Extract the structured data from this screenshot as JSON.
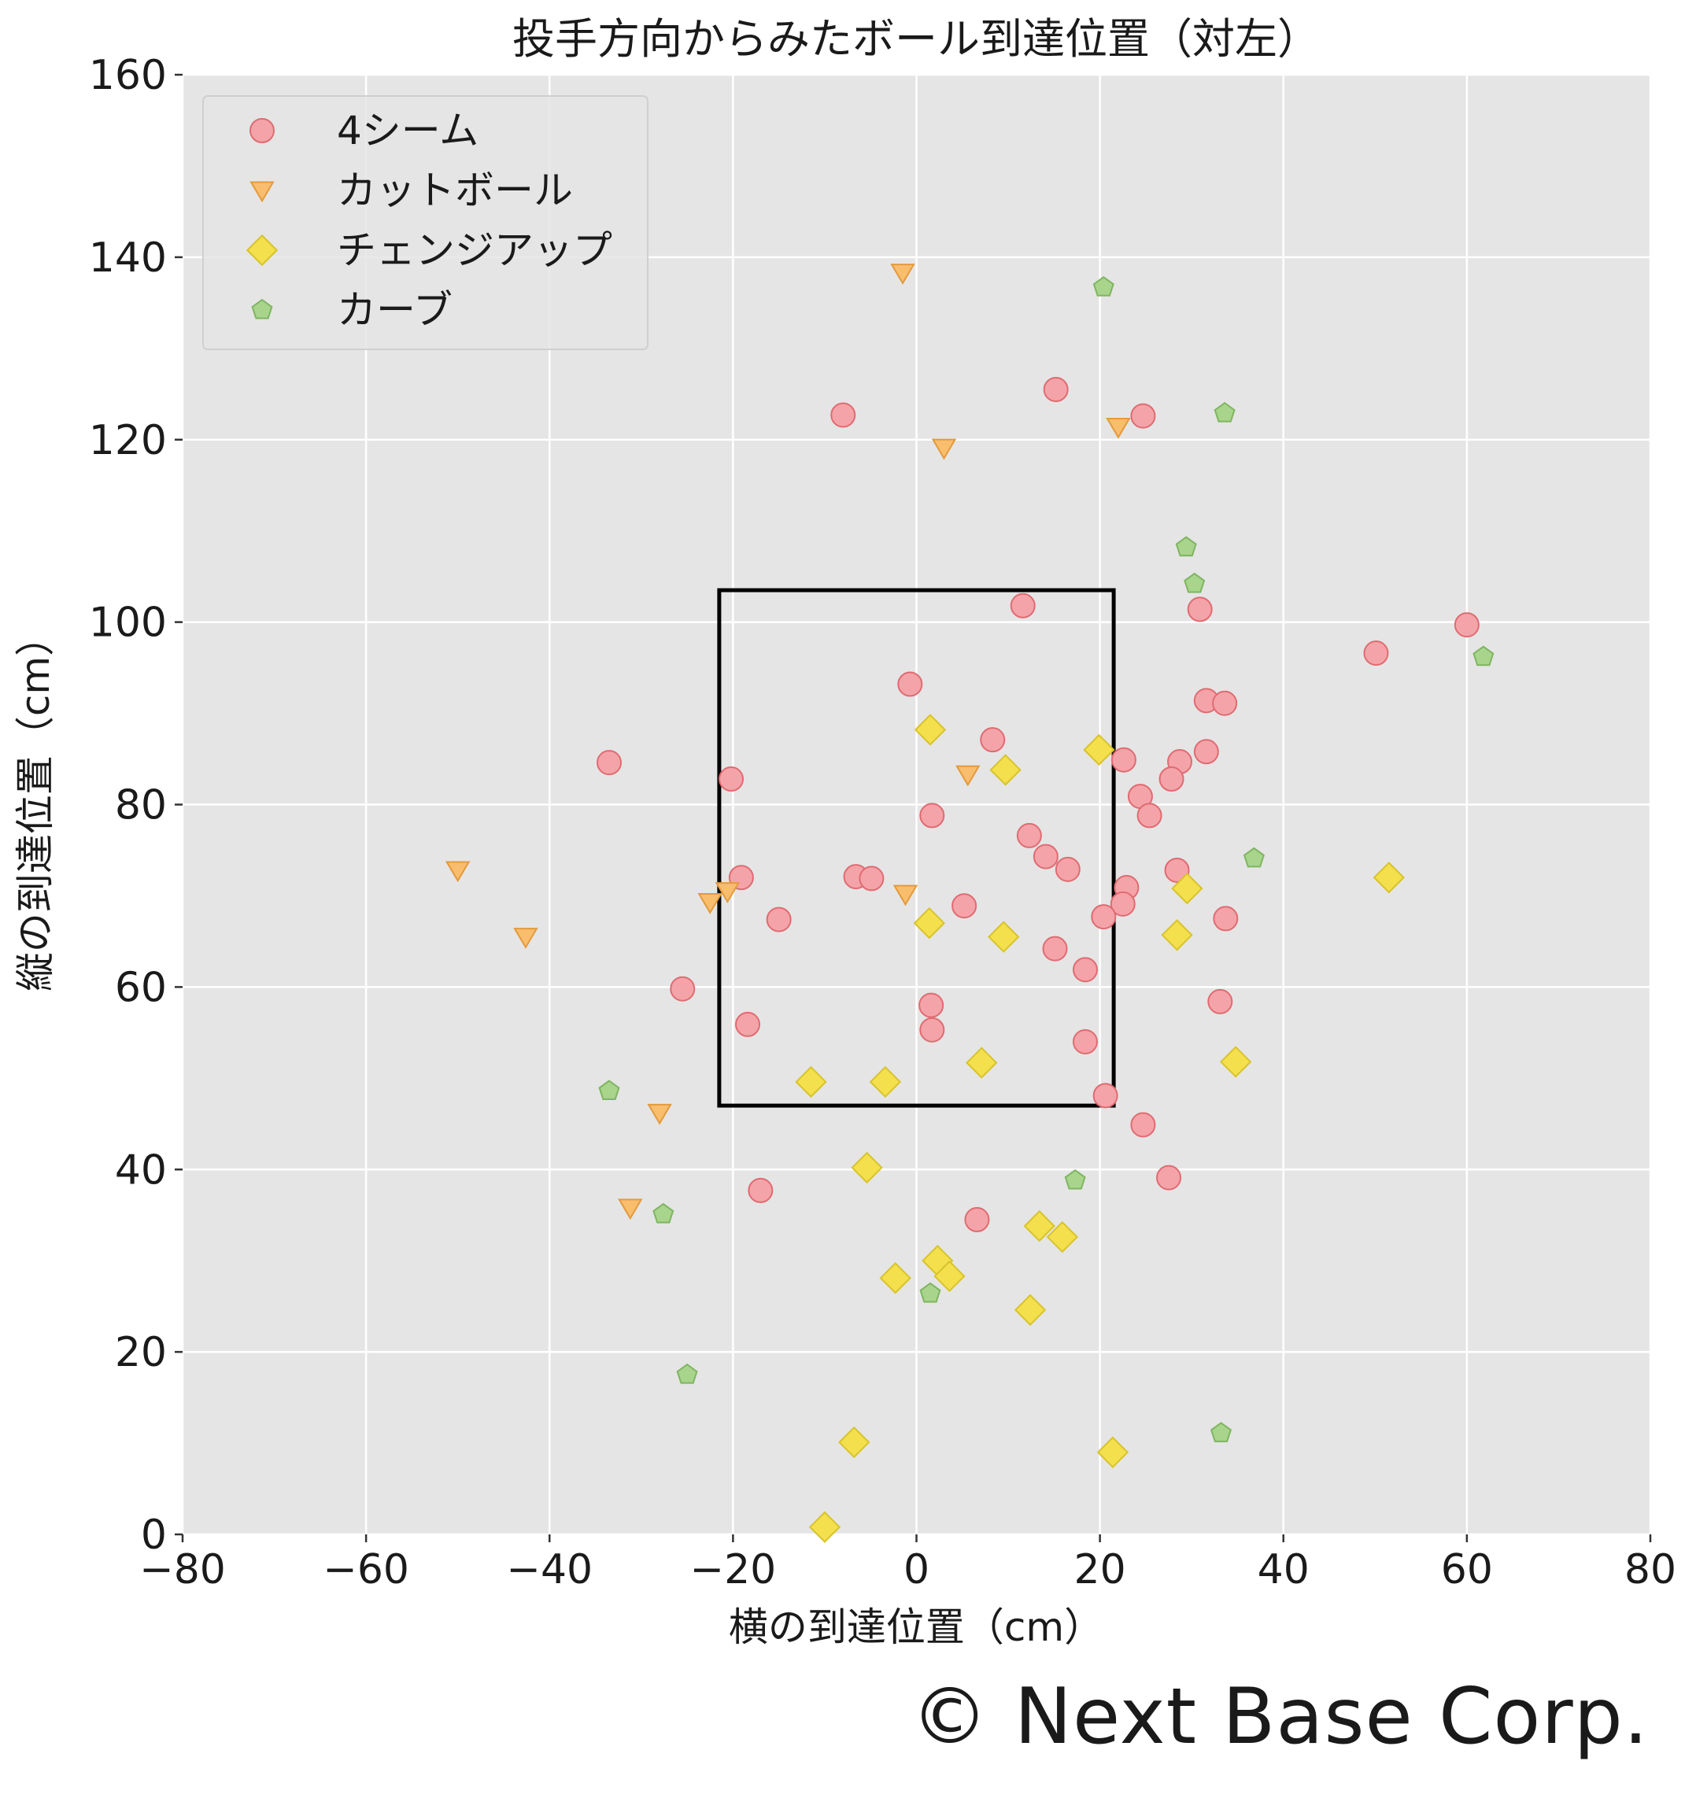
{
  "chart_data": {
    "type": "scatter",
    "title": "投手方向からみたボール到達位置（対左）",
    "xlabel": "横の到達位置（cm）",
    "ylabel": "縦の到達位置（cm）",
    "xlim": [
      -80,
      80
    ],
    "ylim": [
      0,
      160
    ],
    "xticks": [
      -80,
      -60,
      -40,
      -20,
      0,
      20,
      40,
      60,
      80
    ],
    "yticks": [
      0,
      20,
      40,
      60,
      80,
      100,
      120,
      140,
      160
    ],
    "xtick_labels": [
      "−80",
      "−60",
      "−40",
      "−20",
      "0",
      "20",
      "40",
      "60",
      "80"
    ],
    "ytick_labels": [
      "0",
      "20",
      "40",
      "60",
      "80",
      "100",
      "120",
      "140",
      "160"
    ],
    "grid": true,
    "legend_position": "top-left",
    "strike_zone": {
      "x": [
        -21.5,
        21.5
      ],
      "y": [
        47,
        103.5
      ]
    },
    "series": [
      {
        "name": "4シーム",
        "marker": "circle",
        "color": "#f4a4a8",
        "edge": "#e06b72",
        "points": [
          [
            -8,
            122.7
          ],
          [
            15.2,
            125.5
          ],
          [
            24.7,
            122.6
          ],
          [
            11.6,
            101.8
          ],
          [
            30.9,
            101.4
          ],
          [
            -0.7,
            93.2
          ],
          [
            31.6,
            91.4
          ],
          [
            33.6,
            91.1
          ],
          [
            8.3,
            87.1
          ],
          [
            -33.5,
            84.6
          ],
          [
            22.6,
            84.9
          ],
          [
            28.7,
            84.7
          ],
          [
            31.6,
            85.8
          ],
          [
            -20.2,
            82.8
          ],
          [
            24.4,
            80.9
          ],
          [
            27.8,
            82.8
          ],
          [
            25.4,
            78.8
          ],
          [
            1.7,
            78.8
          ],
          [
            12.3,
            76.6
          ],
          [
            14.1,
            74.3
          ],
          [
            16.5,
            72.9
          ],
          [
            -19.1,
            72.0
          ],
          [
            -6.6,
            72.1
          ],
          [
            -4.9,
            71.9
          ],
          [
            28.4,
            72.8
          ],
          [
            22.9,
            70.9
          ],
          [
            22.5,
            69.1
          ],
          [
            5.2,
            68.9
          ],
          [
            -15.0,
            67.4
          ],
          [
            20.4,
            67.7
          ],
          [
            33.7,
            67.5
          ],
          [
            15.1,
            64.2
          ],
          [
            18.4,
            61.9
          ],
          [
            -25.5,
            59.8
          ],
          [
            33.1,
            58.4
          ],
          [
            1.6,
            58.0
          ],
          [
            -18.4,
            55.9
          ],
          [
            1.7,
            55.3
          ],
          [
            18.4,
            54.0
          ],
          [
            20.6,
            48.1
          ],
          [
            24.7,
            44.9
          ],
          [
            -17.0,
            37.7
          ],
          [
            27.5,
            39.1
          ],
          [
            6.6,
            34.5
          ],
          [
            60.0,
            99.7
          ],
          [
            50.1,
            96.6
          ]
        ]
      },
      {
        "name": "カットボール",
        "marker": "triangle-down",
        "color": "#f9bd6e",
        "edge": "#e39a3c",
        "points": [
          [
            -1.5,
            138.3
          ],
          [
            3.0,
            119.1
          ],
          [
            22.0,
            121.4
          ],
          [
            5.6,
            83.3
          ],
          [
            -1.2,
            70.2
          ],
          [
            -20.6,
            70.5
          ],
          [
            -22.5,
            69.3
          ],
          [
            -50.0,
            72.8
          ],
          [
            -42.6,
            65.5
          ],
          [
            -28.0,
            46.2
          ],
          [
            -31.2,
            35.8
          ]
        ]
      },
      {
        "name": "チェンジアップ",
        "marker": "diamond",
        "color": "#f4e04d",
        "edge": "#d8c32a",
        "points": [
          [
            1.5,
            88.2
          ],
          [
            9.7,
            83.8
          ],
          [
            19.9,
            86.0
          ],
          [
            51.5,
            72.0
          ],
          [
            29.5,
            70.8
          ],
          [
            1.4,
            67.0
          ],
          [
            9.5,
            65.5
          ],
          [
            28.4,
            65.7
          ],
          [
            34.8,
            51.8
          ],
          [
            7.1,
            51.7
          ],
          [
            -11.5,
            49.6
          ],
          [
            -3.4,
            49.6
          ],
          [
            -5.4,
            40.2
          ],
          [
            13.4,
            33.8
          ],
          [
            15.9,
            32.6
          ],
          [
            2.3,
            30.0
          ],
          [
            3.6,
            28.3
          ],
          [
            -2.3,
            28.1
          ],
          [
            12.4,
            24.6
          ],
          [
            -6.8,
            10.1
          ],
          [
            21.4,
            9.0
          ],
          [
            -10.0,
            0.8
          ]
        ]
      },
      {
        "name": "カーブ",
        "marker": "pentagon",
        "color": "#a8d48c",
        "edge": "#7fb561",
        "points": [
          [
            20.4,
            136.7
          ],
          [
            33.6,
            122.9
          ],
          [
            29.4,
            108.2
          ],
          [
            30.3,
            104.2
          ],
          [
            61.8,
            96.2
          ],
          [
            36.8,
            74.1
          ],
          [
            -33.5,
            48.6
          ],
          [
            17.3,
            38.8
          ],
          [
            -27.6,
            35.1
          ],
          [
            1.5,
            26.4
          ],
          [
            -25.0,
            17.5
          ],
          [
            33.2,
            11.1
          ]
        ]
      }
    ]
  },
  "copyright": "© Next Base Corp."
}
